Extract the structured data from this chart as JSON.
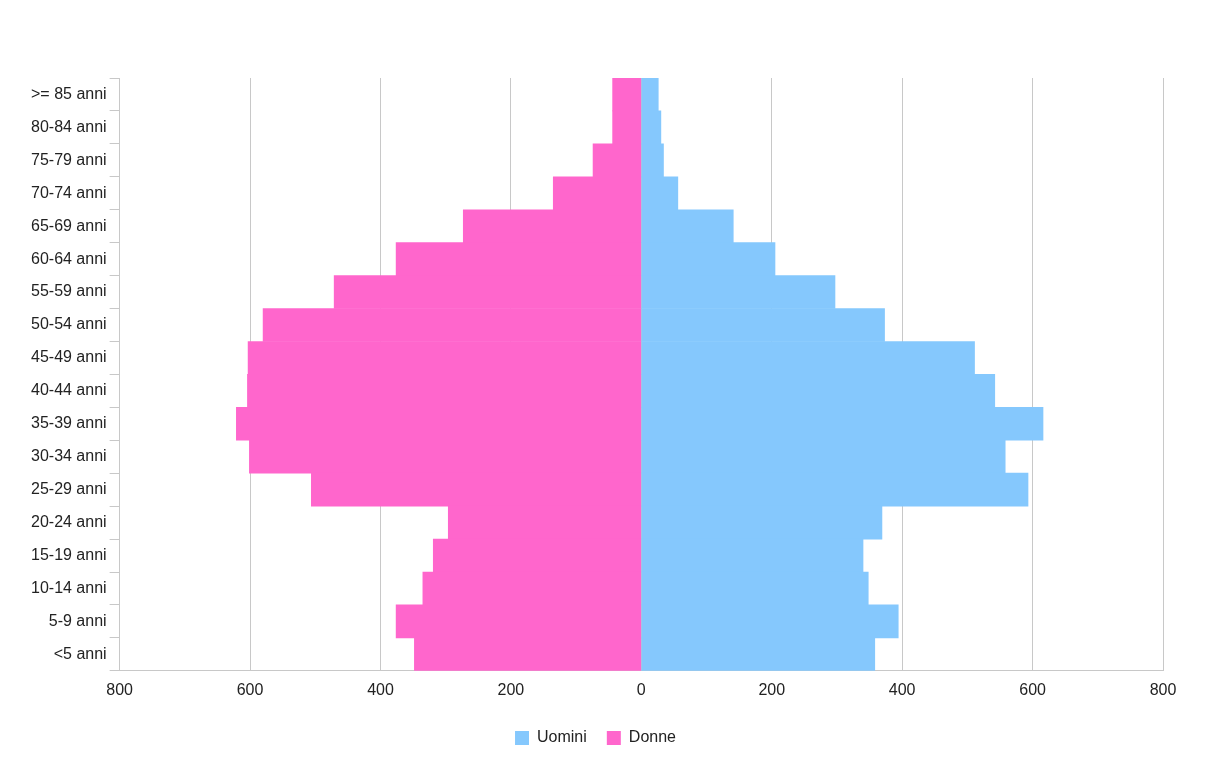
{
  "chart_data": {
    "type": "bar",
    "orientation": "horizontal",
    "stacked": true,
    "categories": [
      ">= 85 anni",
      "80-84 anni",
      "75-79 anni",
      "70-74 anni",
      "65-69 anni",
      "60-64 anni",
      "55-59 anni",
      "50-54 anni",
      "45-49 anni",
      "40-44 anni",
      "35-39 anni",
      "30-34 anni",
      "25-29 anni",
      "20-24 anni",
      "15-19 anni",
      "10-14 anni",
      "5-9 anni",
      "<5 anni"
    ],
    "series": [
      {
        "name": "Uomini",
        "color": "#85c8fd",
        "values": [
          26,
          30,
          34,
          56,
          141,
          205,
          297,
          373,
          511,
          542,
          616,
          558,
          593,
          369,
          340,
          348,
          394,
          358
        ]
      },
      {
        "name": "Donne",
        "color": "#ff66cc",
        "values": [
          -44,
          -44,
          -74,
          -135,
          -273,
          -376,
          -471,
          -580,
          -603,
          -604,
          -621,
          -601,
          -506,
          -296,
          -319,
          -335,
          -376,
          -348
        ]
      }
    ],
    "xlim": [
      -800,
      800
    ],
    "xticks": [
      {
        "value": -800,
        "label": "800"
      },
      {
        "value": -600,
        "label": "600"
      },
      {
        "value": -400,
        "label": "400"
      },
      {
        "value": -200,
        "label": "200"
      },
      0,
      200,
      400,
      600,
      800
    ],
    "grid": "x",
    "legend": "bottom"
  }
}
